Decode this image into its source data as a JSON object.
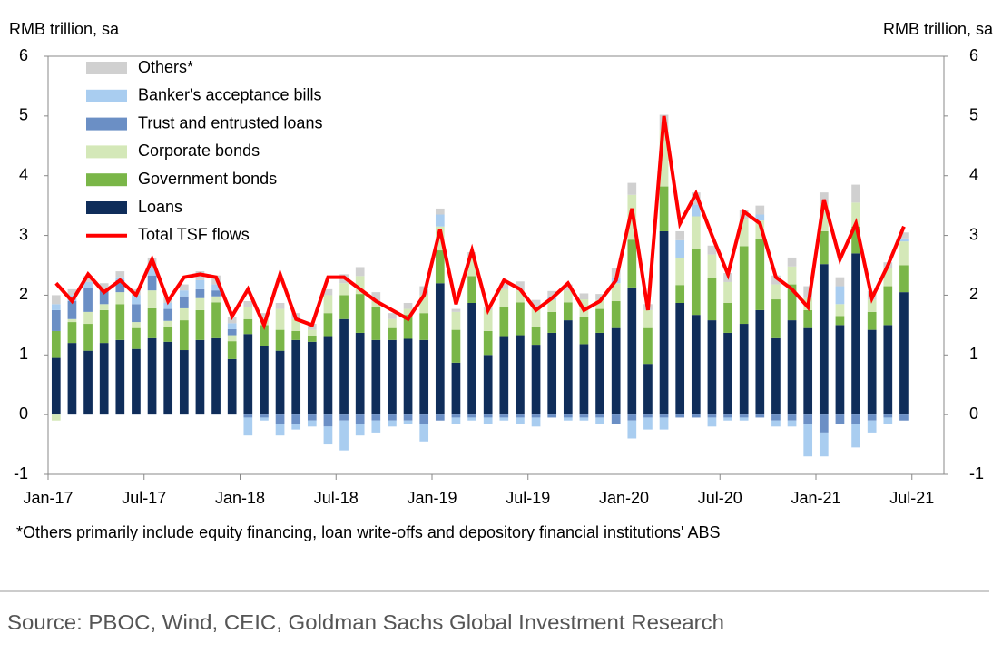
{
  "chart_data": {
    "type": "bar",
    "stacked": true,
    "y_label": "RMB trillion, sa",
    "y2_label": "RMB trillion, sa",
    "footnote": "*Others primarily include equity financing, loan write-offs and depository financial institutions' ABS",
    "source": "Source: PBOC, Wind, CEIC, Goldman Sachs Global Investment Research",
    "categories": [
      "Jan-17",
      null,
      null,
      null,
      null,
      null,
      "Jul-17",
      null,
      null,
      null,
      null,
      null,
      "Jan-18",
      null,
      null,
      null,
      null,
      null,
      "Jul-18",
      null,
      null,
      null,
      null,
      null,
      "Jan-19",
      null,
      null,
      null,
      null,
      null,
      "Jul-19",
      null,
      null,
      null,
      null,
      null,
      "Jan-20",
      null,
      null,
      null,
      null,
      null,
      "Jul-20",
      null,
      null,
      null,
      null,
      null,
      "Jan-21",
      null,
      null,
      null,
      null,
      null,
      "Jul-21"
    ],
    "ylim": [
      -1,
      6
    ],
    "yticks": [
      -1,
      0,
      1,
      2,
      3,
      4,
      5,
      6
    ],
    "y2lim": [
      -1,
      6
    ],
    "y2ticks": [
      -1,
      0,
      1,
      2,
      3,
      4,
      5,
      6
    ],
    "legend": "upper left",
    "series": [
      {
        "name": "Loans",
        "color": "#0f2d5a",
        "values": [
          0.95,
          1.2,
          1.07,
          1.2,
          1.25,
          1.1,
          1.28,
          1.22,
          1.08,
          1.25,
          1.28,
          0.93,
          1.35,
          1.15,
          1.07,
          1.25,
          1.22,
          1.3,
          1.6,
          1.37,
          1.25,
          1.25,
          1.27,
          1.25,
          2.2,
          0.87,
          1.87,
          1.0,
          1.3,
          1.33,
          1.17,
          1.37,
          1.58,
          1.18,
          1.37,
          1.45,
          2.13,
          0.85,
          3.07,
          1.87,
          1.67,
          1.58,
          1.37,
          1.52,
          1.75,
          1.28,
          1.58,
          1.45,
          2.52,
          1.5,
          2.7,
          1.42,
          1.5,
          2.05,
          null
        ]
      },
      {
        "name": "Government bonds",
        "color": "#7ab648",
        "values": [
          0.45,
          0.35,
          0.45,
          0.55,
          0.6,
          0.35,
          0.5,
          0.25,
          0.5,
          0.5,
          0.6,
          0.3,
          0.25,
          0.35,
          0.35,
          0.15,
          0.1,
          0.4,
          0.4,
          0.65,
          0.55,
          0.2,
          0.4,
          0.45,
          0.55,
          0.55,
          0.45,
          0.4,
          0.5,
          0.55,
          0.3,
          0.35,
          0.3,
          0.45,
          0.4,
          0.45,
          0.8,
          0.6,
          0.75,
          0.3,
          1.1,
          0.7,
          0.5,
          1.3,
          1.2,
          0.65,
          0.6,
          0.3,
          0.55,
          0.15,
          0.45,
          0.3,
          0.65,
          0.45,
          null
        ]
      },
      {
        "name": "Corporate bonds",
        "color": "#d4e8b8",
        "values": [
          -0.1,
          0.05,
          0.2,
          0.1,
          0.2,
          0.1,
          0.3,
          0.1,
          0.2,
          0.2,
          0.1,
          0.1,
          0.2,
          0.1,
          0.35,
          0.2,
          0.1,
          0.3,
          0.2,
          0.3,
          0.1,
          0.15,
          0.1,
          0.3,
          0.4,
          0.3,
          0.3,
          0.35,
          0.3,
          0.2,
          0.3,
          0.2,
          0.2,
          0.3,
          0.15,
          0.3,
          0.75,
          0.3,
          0.95,
          0.45,
          0.55,
          0.4,
          0.35,
          0.45,
          0.3,
          0.25,
          0.3,
          0.2,
          0.45,
          0.2,
          0.4,
          0.2,
          0.3,
          0.4,
          null
        ]
      },
      {
        "name": "Trust and entrusted loans",
        "color": "#6b8fc5",
        "values": [
          0.35,
          0.3,
          0.4,
          0.25,
          0.2,
          0.3,
          0.25,
          0.2,
          0.2,
          0.15,
          0.1,
          0.1,
          -0.05,
          -0.05,
          -0.15,
          -0.15,
          -0.1,
          -0.2,
          -0.1,
          -0.15,
          -0.1,
          -0.1,
          -0.1,
          -0.15,
          -0.1,
          -0.05,
          -0.05,
          -0.05,
          -0.05,
          -0.05,
          -0.05,
          -0.05,
          -0.05,
          -0.05,
          -0.05,
          -0.15,
          -0.1,
          -0.05,
          -0.05,
          -0.05,
          -0.05,
          -0.05,
          -0.05,
          -0.05,
          -0.05,
          -0.1,
          -0.1,
          -0.15,
          -0.3,
          -0.15,
          -0.15,
          -0.1,
          -0.05,
          -0.1,
          null
        ]
      },
      {
        "name": "Banker's acceptance bills",
        "color": "#a9cdf0",
        "values": [
          0.1,
          0.1,
          0.1,
          0.0,
          0.05,
          0.15,
          0.2,
          0.1,
          0.1,
          0.15,
          0.1,
          0.1,
          -0.3,
          -0.05,
          -0.2,
          -0.1,
          -0.1,
          -0.3,
          -0.5,
          -0.2,
          -0.2,
          -0.1,
          -0.05,
          -0.3,
          0.2,
          -0.1,
          -0.05,
          -0.1,
          -0.05,
          -0.1,
          -0.15,
          0.05,
          -0.05,
          -0.05,
          -0.1,
          0.1,
          -0.3,
          -0.2,
          -0.2,
          0.3,
          0.2,
          -0.15,
          -0.05,
          -0.05,
          0.1,
          -0.1,
          -0.1,
          -0.55,
          -0.4,
          0.3,
          -0.4,
          -0.2,
          -0.1,
          0.05,
          null
        ]
      },
      {
        "name": "Others*",
        "color": "#d0d0d0",
        "values": [
          0.15,
          0.1,
          0.1,
          0.1,
          0.1,
          0.1,
          0.1,
          0.1,
          0.1,
          0.15,
          0.15,
          0.1,
          0.1,
          0.1,
          0.1,
          0.1,
          0.1,
          0.1,
          0.15,
          0.15,
          0.15,
          0.1,
          0.1,
          0.15,
          0.1,
          0.05,
          0.1,
          0.05,
          0.1,
          0.15,
          0.15,
          0.1,
          0.1,
          0.1,
          0.1,
          0.15,
          0.2,
          0.1,
          0.25,
          0.15,
          0.2,
          0.15,
          0.15,
          0.15,
          0.15,
          0.15,
          0.15,
          0.2,
          0.2,
          0.15,
          0.3,
          0.15,
          0.1,
          0.1,
          null
        ]
      },
      {
        "name": "Total TSF flows",
        "type": "line",
        "color": "#ff0000",
        "values": [
          2.2,
          1.9,
          2.35,
          2.05,
          2.25,
          2.0,
          2.6,
          1.9,
          2.3,
          2.35,
          2.3,
          1.65,
          2.1,
          1.5,
          2.35,
          1.6,
          1.5,
          2.3,
          2.3,
          2.1,
          1.9,
          1.75,
          1.6,
          2.0,
          3.1,
          1.85,
          2.75,
          1.75,
          2.25,
          2.1,
          1.75,
          1.95,
          2.2,
          1.75,
          1.9,
          2.25,
          3.45,
          1.75,
          5.0,
          3.2,
          3.7,
          3.0,
          2.35,
          3.4,
          3.2,
          2.3,
          2.1,
          1.8,
          3.6,
          2.6,
          3.2,
          1.95,
          2.5,
          3.15,
          null
        ]
      }
    ]
  }
}
